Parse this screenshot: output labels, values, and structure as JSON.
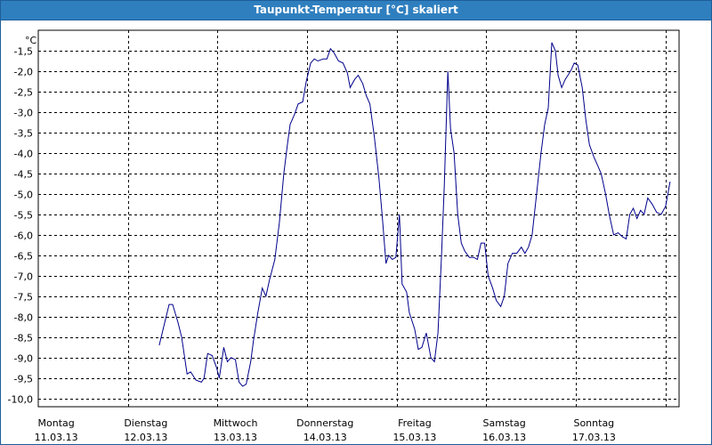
{
  "window": {
    "title": "Taupunkt-Temperatur [°C] skaliert"
  },
  "chart_data": {
    "type": "line",
    "title": "Taupunkt-Temperatur [°C] skaliert",
    "ylabel": "°C",
    "xlabel": "",
    "ylim": [
      -10.2,
      -1.0
    ],
    "xlim": [
      0,
      7.15
    ],
    "grid": true,
    "y_ticks": [
      "-1,5",
      "-2,0",
      "-2,5",
      "-3,0",
      "-3,5",
      "-4,0",
      "-4,5",
      "-5,0",
      "-5,5",
      "-6,0",
      "-6,5",
      "-7,0",
      "-7,5",
      "-8,0",
      "-8,5",
      "-9,0",
      "-9,5",
      "-10,0"
    ],
    "y_tick_values": [
      -1.5,
      -2.0,
      -2.5,
      -3.0,
      -3.5,
      -4.0,
      -4.5,
      -5.0,
      -5.5,
      -6.0,
      -6.5,
      -7.0,
      -7.5,
      -8.0,
      -8.5,
      -9.0,
      -9.5,
      -10.0
    ],
    "x_ticks": [
      {
        "day": "Montag",
        "date": "11.03.13"
      },
      {
        "day": "Dienstag",
        "date": "12.03.13"
      },
      {
        "day": "Mittwoch",
        "date": "13.03.13"
      },
      {
        "day": "Donnerstag",
        "date": "14.03.13"
      },
      {
        "day": "Freitag",
        "date": "15.03.13"
      },
      {
        "day": "Samstag",
        "date": "16.03.13"
      },
      {
        "day": "Sonntag",
        "date": "17.03.13"
      }
    ],
    "series": [
      {
        "color": "#00008b",
        "points": [
          [
            1.35,
            -8.7
          ],
          [
            1.41,
            -8.15
          ],
          [
            1.46,
            -7.7
          ],
          [
            1.5,
            -7.7
          ],
          [
            1.56,
            -8.15
          ],
          [
            1.6,
            -8.5
          ],
          [
            1.66,
            -9.4
          ],
          [
            1.7,
            -9.35
          ],
          [
            1.76,
            -9.55
          ],
          [
            1.82,
            -9.6
          ],
          [
            1.85,
            -9.5
          ],
          [
            1.89,
            -8.9
          ],
          [
            1.94,
            -8.95
          ],
          [
            1.99,
            -9.25
          ],
          [
            2.02,
            -9.5
          ],
          [
            2.07,
            -8.75
          ],
          [
            2.11,
            -9.1
          ],
          [
            2.15,
            -9.0
          ],
          [
            2.2,
            -9.05
          ],
          [
            2.24,
            -9.6
          ],
          [
            2.28,
            -9.7
          ],
          [
            2.32,
            -9.65
          ],
          [
            2.37,
            -9.1
          ],
          [
            2.4,
            -8.6
          ],
          [
            2.45,
            -7.9
          ],
          [
            2.5,
            -7.3
          ],
          [
            2.54,
            -7.5
          ],
          [
            2.58,
            -7.1
          ],
          [
            2.64,
            -6.6
          ],
          [
            2.69,
            -5.7
          ],
          [
            2.74,
            -4.5
          ],
          [
            2.78,
            -3.8
          ],
          [
            2.81,
            -3.3
          ],
          [
            2.86,
            -3.05
          ],
          [
            2.9,
            -2.8
          ],
          [
            2.95,
            -2.75
          ],
          [
            2.99,
            -2.25
          ],
          [
            3.04,
            -1.8
          ],
          [
            3.08,
            -1.7
          ],
          [
            3.12,
            -1.75
          ],
          [
            3.18,
            -1.7
          ],
          [
            3.22,
            -1.7
          ],
          [
            3.26,
            -1.45
          ],
          [
            3.3,
            -1.55
          ],
          [
            3.35,
            -1.75
          ],
          [
            3.4,
            -1.8
          ],
          [
            3.45,
            -2.05
          ],
          [
            3.48,
            -2.4
          ],
          [
            3.53,
            -2.2
          ],
          [
            3.57,
            -2.1
          ],
          [
            3.62,
            -2.3
          ],
          [
            3.66,
            -2.6
          ],
          [
            3.7,
            -2.8
          ],
          [
            3.75,
            -3.6
          ],
          [
            3.8,
            -4.6
          ],
          [
            3.84,
            -5.6
          ],
          [
            3.88,
            -6.7
          ],
          [
            3.91,
            -6.5
          ],
          [
            3.95,
            -6.6
          ],
          [
            3.99,
            -6.55
          ],
          [
            4.03,
            -5.5
          ],
          [
            4.06,
            -7.2
          ],
          [
            4.11,
            -7.4
          ],
          [
            4.14,
            -7.9
          ],
          [
            4.2,
            -8.3
          ],
          [
            4.24,
            -8.8
          ],
          [
            4.28,
            -8.75
          ],
          [
            4.33,
            -8.4
          ],
          [
            4.38,
            -9.0
          ],
          [
            4.42,
            -9.1
          ],
          [
            4.46,
            -8.4
          ],
          [
            4.5,
            -6.5
          ],
          [
            4.53,
            -4.8
          ],
          [
            4.57,
            -2.0
          ],
          [
            4.6,
            -3.4
          ],
          [
            4.64,
            -4.0
          ],
          [
            4.68,
            -5.5
          ],
          [
            4.72,
            -6.2
          ],
          [
            4.76,
            -6.4
          ],
          [
            4.81,
            -6.55
          ],
          [
            4.86,
            -6.55
          ],
          [
            4.9,
            -6.6
          ],
          [
            4.94,
            -6.2
          ],
          [
            4.98,
            -6.2
          ],
          [
            5.02,
            -7.0
          ],
          [
            5.07,
            -7.3
          ],
          [
            5.11,
            -7.6
          ],
          [
            5.16,
            -7.75
          ],
          [
            5.2,
            -7.5
          ],
          [
            5.24,
            -6.7
          ],
          [
            5.29,
            -6.45
          ],
          [
            5.34,
            -6.45
          ],
          [
            5.39,
            -6.3
          ],
          [
            5.43,
            -6.45
          ],
          [
            5.47,
            -6.3
          ],
          [
            5.51,
            -6.0
          ],
          [
            5.56,
            -5.0
          ],
          [
            5.61,
            -4.0
          ],
          [
            5.65,
            -3.3
          ],
          [
            5.69,
            -2.9
          ],
          [
            5.73,
            -1.3
          ],
          [
            5.77,
            -1.5
          ],
          [
            5.8,
            -2.1
          ],
          [
            5.84,
            -2.4
          ],
          [
            5.88,
            -2.2
          ],
          [
            5.91,
            -2.1
          ],
          [
            5.95,
            -1.95
          ],
          [
            5.98,
            -1.8
          ],
          [
            6.02,
            -1.85
          ],
          [
            6.07,
            -2.4
          ],
          [
            6.11,
            -3.2
          ],
          [
            6.15,
            -3.8
          ],
          [
            6.2,
            -4.1
          ],
          [
            6.24,
            -4.3
          ],
          [
            6.28,
            -4.5
          ],
          [
            6.33,
            -5.0
          ],
          [
            6.37,
            -5.5
          ],
          [
            6.42,
            -6.0
          ],
          [
            6.47,
            -5.95
          ],
          [
            6.52,
            -6.05
          ],
          [
            6.56,
            -6.1
          ],
          [
            6.6,
            -5.5
          ],
          [
            6.64,
            -5.35
          ],
          [
            6.68,
            -5.6
          ],
          [
            6.72,
            -5.4
          ],
          [
            6.76,
            -5.5
          ],
          [
            6.8,
            -5.1
          ],
          [
            6.85,
            -5.25
          ],
          [
            6.9,
            -5.45
          ],
          [
            6.95,
            -5.5
          ],
          [
            7.0,
            -5.3
          ],
          [
            7.05,
            -4.7
          ]
        ]
      }
    ]
  }
}
